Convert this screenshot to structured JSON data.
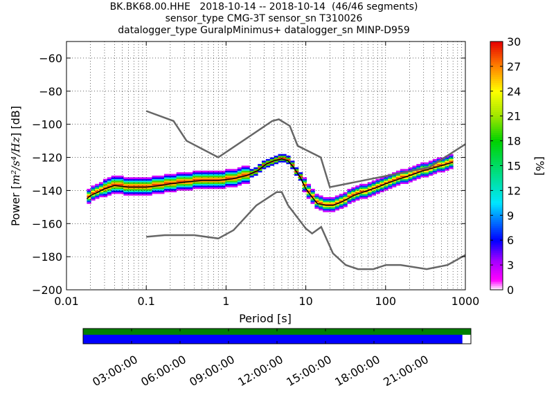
{
  "title_lines": [
    "BK.BK68.00.HHE   2018-10-14 -- 2018-10-14  (46/46 segments)",
    "sensor_type CMG-3T sensor_sn T310026",
    "datalogger_type GuralpMinimus+ datalogger_sn MINP-D959"
  ],
  "chart_data": {
    "type": "heatmap",
    "xlabel": "Period [s]",
    "ylabel_text": "Power [",
    "ylabel_math": "m²/s⁴/Hz",
    "ylabel_unit": "] [dB]",
    "x_scale": "log",
    "xlim": [
      0.01,
      1000
    ],
    "ylim": [
      -200,
      -50
    ],
    "x_ticks": [
      0.01,
      0.1,
      1,
      10,
      100,
      1000
    ],
    "x_tick_labels": [
      "0.01",
      "0.1",
      "1",
      "10",
      "100",
      "1000"
    ],
    "y_ticks": [
      -200,
      -180,
      -160,
      -140,
      -120,
      -100,
      -80,
      -60
    ],
    "y_tick_labels": [
      "−200",
      "−180",
      "−160",
      "−140",
      "−120",
      "−100",
      "−80",
      "−60"
    ],
    "grid": true,
    "colorbar": {
      "label": "[%]",
      "range": [
        0,
        30
      ],
      "ticks": [
        0,
        3,
        6,
        9,
        12,
        15,
        18,
        21,
        24,
        27,
        30
      ],
      "tick_labels": [
        "0",
        "3",
        "6",
        "9",
        "12",
        "15",
        "18",
        "21",
        "24",
        "27",
        "30"
      ]
    },
    "noise_model_high": [
      [
        0.1,
        -92
      ],
      [
        0.22,
        -98
      ],
      [
        0.32,
        -110
      ],
      [
        0.8,
        -120
      ],
      [
        3.8,
        -98
      ],
      [
        4.6,
        -97
      ],
      [
        6.3,
        -101
      ],
      [
        7.9,
        -113
      ],
      [
        15.4,
        -120
      ],
      [
        20,
        -138
      ],
      [
        354,
        -126
      ],
      [
        1000,
        -112
      ]
    ],
    "noise_model_low": [
      [
        0.1,
        -168
      ],
      [
        0.17,
        -167
      ],
      [
        0.4,
        -167
      ],
      [
        0.8,
        -169
      ],
      [
        1.24,
        -164
      ],
      [
        2.4,
        -149
      ],
      [
        4.3,
        -141
      ],
      [
        5.0,
        -141
      ],
      [
        6.0,
        -149
      ],
      [
        10,
        -163
      ],
      [
        12,
        -166
      ],
      [
        15.6,
        -162
      ],
      [
        21.9,
        -178
      ],
      [
        31.6,
        -185
      ],
      [
        45,
        -187.5
      ],
      [
        70,
        -187.5
      ],
      [
        101,
        -185
      ],
      [
        154,
        -185
      ],
      [
        328,
        -187.5
      ],
      [
        600,
        -185
      ],
      [
        1000,
        -179
      ]
    ],
    "mode_curve": [
      [
        0.018,
        -145
      ],
      [
        0.02,
        -143
      ],
      [
        0.025,
        -141
      ],
      [
        0.03,
        -139
      ],
      [
        0.04,
        -137
      ],
      [
        0.06,
        -138
      ],
      [
        0.1,
        -138
      ],
      [
        0.15,
        -137
      ],
      [
        0.2,
        -136
      ],
      [
        0.3,
        -135
      ],
      [
        0.5,
        -134
      ],
      [
        0.8,
        -134
      ],
      [
        1.2,
        -133
      ],
      [
        1.8,
        -131
      ],
      [
        2.5,
        -128
      ],
      [
        3.2,
        -124
      ],
      [
        4,
        -122
      ],
      [
        5,
        -121
      ],
      [
        6,
        -122
      ],
      [
        7,
        -126
      ],
      [
        8.5,
        -132
      ],
      [
        10,
        -139
      ],
      [
        12,
        -144
      ],
      [
        14,
        -148
      ],
      [
        18,
        -149
      ],
      [
        22,
        -149
      ],
      [
        28,
        -147
      ],
      [
        40,
        -143
      ],
      [
        60,
        -140
      ],
      [
        80,
        -138
      ],
      [
        100,
        -136
      ],
      [
        150,
        -133
      ],
      [
        200,
        -131
      ],
      [
        300,
        -128
      ],
      [
        500,
        -125
      ],
      [
        700,
        -123
      ]
    ]
  },
  "timeline": {
    "tick_labels": [
      "03:00:00",
      "06:00:00",
      "09:00:00",
      "12:00:00",
      "15:00:00",
      "18:00:00",
      "21:00:00"
    ],
    "coverage_data": 1.0,
    "coverage_psd": 0.978,
    "data_color": "#008000",
    "psd_color": "#0000ff"
  },
  "colors": {
    "noise_model": "#666666",
    "mode_line": "#000000"
  }
}
